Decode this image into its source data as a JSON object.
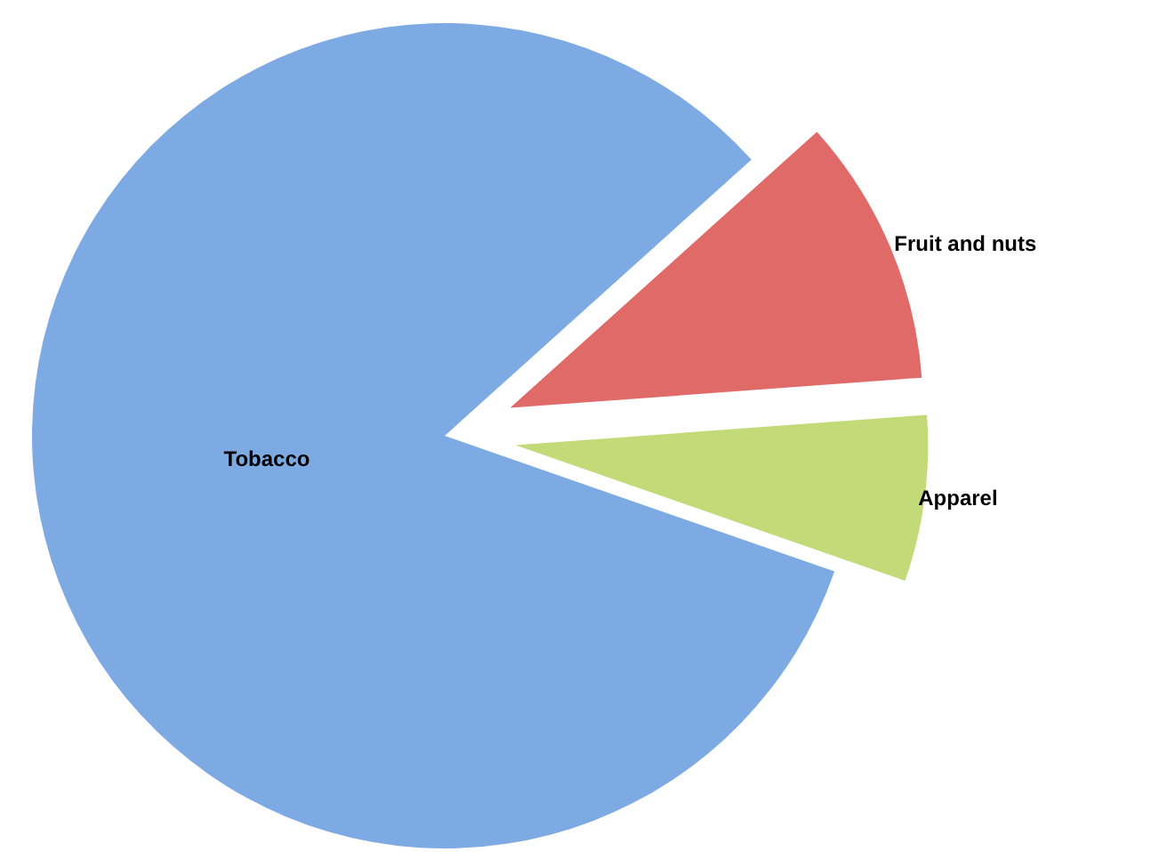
{
  "chart_data": {
    "type": "pie",
    "categories": [
      "Tobacco",
      "Fruit and nuts",
      "Apparel"
    ],
    "values": [
      83,
      10.5,
      6.5
    ],
    "colors": [
      "#7eaae4",
      "#e06a68",
      "#c2da78"
    ]
  }
}
